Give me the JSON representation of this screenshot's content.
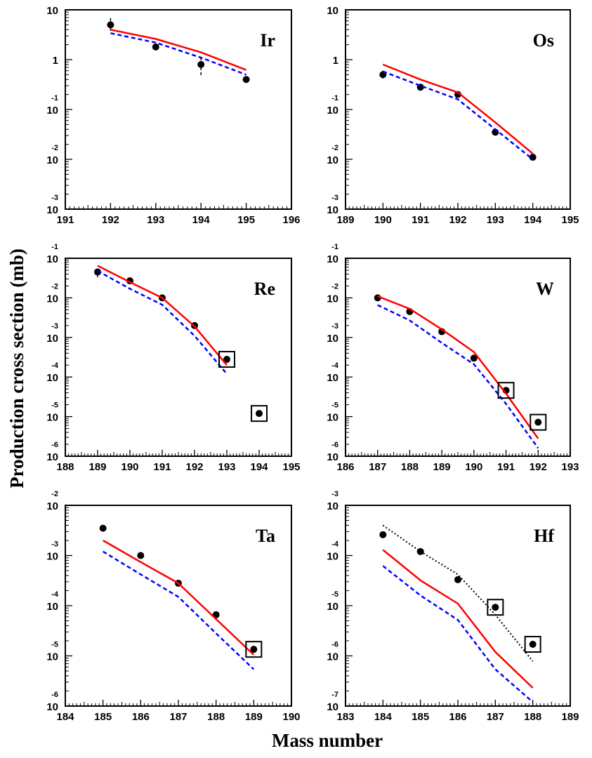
{
  "figure": {
    "xlabel": "Mass number",
    "ylabel": "Production cross section (mb)"
  },
  "chart_data": [
    {
      "type": "scatter",
      "title": "Ir",
      "xlim": [
        191,
        196
      ],
      "xticks": [
        191,
        192,
        193,
        194,
        195,
        196
      ],
      "ylim_exp": [
        -3,
        1
      ],
      "yscale": "log",
      "ytick_labels": [
        {
          "base": "10",
          "exp": ""
        },
        {
          "base": "1",
          "exp": ""
        },
        {
          "base": "10",
          "exp": "-1"
        },
        {
          "base": "10",
          "exp": "-2"
        },
        {
          "base": "10",
          "exp": "-3"
        }
      ],
      "series": [
        {
          "style": "data",
          "color": "#000000",
          "x": [
            192,
            193,
            194,
            195
          ],
          "y": [
            5.0,
            1.8,
            0.8,
            0.4
          ],
          "err_low": [
            3.8,
            1.8,
            0.45,
            0.4
          ],
          "err_high": [
            6.8,
            1.8,
            1.1,
            0.4
          ]
        },
        {
          "style": "solid",
          "color": "#ff0000",
          "x": [
            192,
            193,
            194,
            195
          ],
          "y": [
            4.0,
            2.6,
            1.4,
            0.62
          ]
        },
        {
          "style": "dashed",
          "color": "#0000ff",
          "x": [
            192,
            193,
            194,
            195
          ],
          "y": [
            3.4,
            2.2,
            1.1,
            0.5
          ]
        }
      ],
      "boxed": []
    },
    {
      "type": "scatter",
      "title": "Os",
      "xlim": [
        189,
        195
      ],
      "xticks": [
        189,
        190,
        191,
        192,
        193,
        194,
        195
      ],
      "ylim_exp": [
        -3,
        1
      ],
      "yscale": "log",
      "ytick_labels": [
        {
          "base": "10",
          "exp": ""
        },
        {
          "base": "1",
          "exp": ""
        },
        {
          "base": "10",
          "exp": "-1"
        },
        {
          "base": "10",
          "exp": "-2"
        },
        {
          "base": "10",
          "exp": "-3"
        }
      ],
      "series": [
        {
          "style": "data",
          "color": "#000000",
          "x": [
            190,
            191,
            192,
            193,
            194
          ],
          "y": [
            0.5,
            0.28,
            0.2,
            0.035,
            0.011
          ],
          "err_low": [
            0.4,
            0.28,
            0.2,
            0.035,
            0.011
          ],
          "err_high": [
            0.6,
            0.28,
            0.2,
            0.035,
            0.011
          ]
        },
        {
          "style": "solid",
          "color": "#ff0000",
          "x": [
            190,
            191,
            192,
            193,
            194
          ],
          "y": [
            0.8,
            0.4,
            0.22,
            0.055,
            0.013
          ]
        },
        {
          "style": "dashed",
          "color": "#0000ff",
          "x": [
            190,
            191,
            192,
            193,
            194
          ],
          "y": [
            0.58,
            0.3,
            0.16,
            0.04,
            0.01
          ]
        }
      ],
      "boxed": []
    },
    {
      "type": "scatter",
      "title": "Re",
      "xlim": [
        188,
        195
      ],
      "xticks": [
        188,
        189,
        190,
        191,
        192,
        193,
        194,
        195
      ],
      "ylim_exp": [
        -6,
        -1
      ],
      "yscale": "log",
      "ytick_labels": [
        {
          "base": "10",
          "exp": "-1"
        },
        {
          "base": "10",
          "exp": "-2"
        },
        {
          "base": "10",
          "exp": "-3"
        },
        {
          "base": "10",
          "exp": "-4"
        },
        {
          "base": "10",
          "exp": "-5"
        },
        {
          "base": "10",
          "exp": "-6"
        }
      ],
      "series": [
        {
          "style": "data",
          "color": "#000000",
          "x": [
            189,
            190,
            191,
            192,
            193,
            194
          ],
          "y": [
            0.045,
            0.027,
            0.01,
            0.002,
            0.00028,
            1.2e-05
          ],
          "err_low": [
            0.033,
            0.027,
            0.01,
            0.002,
            0.00028,
            1.2e-05
          ],
          "err_high": [
            0.05,
            0.027,
            0.01,
            0.002,
            0.00028,
            1.2e-05
          ]
        },
        {
          "style": "solid",
          "color": "#ff0000",
          "x": [
            189,
            190,
            191,
            192,
            193
          ],
          "y": [
            0.065,
            0.025,
            0.01,
            0.0019,
            0.0002
          ]
        },
        {
          "style": "dashed",
          "color": "#0000ff",
          "x": [
            189,
            190,
            191,
            192,
            193
          ],
          "y": [
            0.048,
            0.017,
            0.0067,
            0.0011,
            0.00012
          ]
        }
      ],
      "boxed": [
        193,
        194
      ]
    },
    {
      "type": "scatter",
      "title": "W",
      "xlim": [
        186,
        193
      ],
      "xticks": [
        186,
        187,
        188,
        189,
        190,
        191,
        192,
        193
      ],
      "ylim_exp": [
        -6,
        -1
      ],
      "yscale": "log",
      "ytick_labels": [
        {
          "base": "10",
          "exp": "-1"
        },
        {
          "base": "10",
          "exp": "-2"
        },
        {
          "base": "10",
          "exp": "-3"
        },
        {
          "base": "10",
          "exp": "-4"
        },
        {
          "base": "10",
          "exp": "-5"
        },
        {
          "base": "10",
          "exp": "-6"
        }
      ],
      "series": [
        {
          "style": "data",
          "color": "#000000",
          "x": [
            187,
            188,
            189,
            190,
            191,
            192
          ],
          "y": [
            0.01,
            0.0045,
            0.0014,
            0.0003,
            4.6e-05,
            7.2e-06
          ],
          "err_low": [
            0.01,
            0.0045,
            0.0014,
            0.0003,
            4.6e-05,
            7.2e-06
          ],
          "err_high": [
            0.01,
            0.0045,
            0.0014,
            0.0003,
            4.6e-05,
            7.2e-06
          ]
        },
        {
          "style": "solid",
          "color": "#ff0000",
          "x": [
            187,
            188,
            189,
            190,
            191,
            192
          ],
          "y": [
            0.011,
            0.0053,
            0.0016,
            0.00043,
            3.8e-05,
            2.8e-06
          ]
        },
        {
          "style": "dashed",
          "color": "#0000ff",
          "x": [
            187,
            188,
            189,
            190,
            191,
            192
          ],
          "y": [
            0.0066,
            0.0027,
            0.00073,
            0.00021,
            2.1e-05,
            1.6e-06
          ]
        }
      ],
      "boxed": [
        191,
        192
      ]
    },
    {
      "type": "scatter",
      "title": "Ta",
      "xlim": [
        184,
        190
      ],
      "xticks": [
        184,
        185,
        186,
        187,
        188,
        189,
        190
      ],
      "ylim_exp": [
        -6,
        -2
      ],
      "yscale": "log",
      "ytick_labels": [
        {
          "base": "10",
          "exp": "-2"
        },
        {
          "base": "10",
          "exp": "-3"
        },
        {
          "base": "10",
          "exp": "-4"
        },
        {
          "base": "10",
          "exp": "-5"
        },
        {
          "base": "10",
          "exp": "-6"
        }
      ],
      "series": [
        {
          "style": "data",
          "color": "#000000",
          "x": [
            185,
            186,
            187,
            188,
            189
          ],
          "y": [
            0.0035,
            0.001,
            0.00028,
            6.6e-05,
            1.35e-05
          ],
          "err_low": [
            0.0031,
            0.001,
            0.00028,
            6.6e-05,
            1.35e-05
          ],
          "err_high": [
            0.0035,
            0.001,
            0.00028,
            6.6e-05,
            1.35e-05
          ]
        },
        {
          "style": "solid",
          "color": "#ff0000",
          "x": [
            185,
            186,
            187,
            188,
            189
          ],
          "y": [
            0.002,
            0.00074,
            0.00028,
            5.4e-05,
            1.05e-05
          ]
        },
        {
          "style": "dashed",
          "color": "#0000ff",
          "x": [
            185,
            186,
            187,
            188,
            189
          ],
          "y": [
            0.0012,
            0.00042,
            0.00015,
            2.8e-05,
            5.4e-06
          ]
        }
      ],
      "boxed": [
        189
      ]
    },
    {
      "type": "scatter",
      "title": "Hf",
      "xlim": [
        183,
        189
      ],
      "xticks": [
        183,
        184,
        185,
        186,
        187,
        188,
        189
      ],
      "ylim_exp": [
        -7,
        -3
      ],
      "yscale": "log",
      "ytick_labels": [
        {
          "base": "10",
          "exp": "-3"
        },
        {
          "base": "10",
          "exp": "-4"
        },
        {
          "base": "10",
          "exp": "-5"
        },
        {
          "base": "10",
          "exp": "-6"
        },
        {
          "base": "10",
          "exp": "-7"
        }
      ],
      "series": [
        {
          "style": "data",
          "color": "#000000",
          "x": [
            184,
            185,
            186,
            187,
            188
          ],
          "y": [
            0.00026,
            0.00012,
            3.3e-05,
            9.3e-06,
            1.7e-06
          ],
          "err_low": [
            0.00023,
            0.00012,
            3.3e-05,
            9.3e-06,
            1.7e-06
          ],
          "err_high": [
            0.00026,
            0.00012,
            3.3e-05,
            9.3e-06,
            1.7e-06
          ]
        },
        {
          "style": "dotted",
          "color": "#000000",
          "x": [
            184,
            185,
            186,
            187,
            188
          ],
          "y": [
            0.0004,
            0.00012,
            4.2e-05,
            6.6e-06,
            7.8e-07
          ]
        },
        {
          "style": "solid",
          "color": "#ff0000",
          "x": [
            184,
            185,
            186,
            187,
            188
          ],
          "y": [
            0.00013,
            3.2e-05,
            1.1e-05,
            1.2e-06,
            2.3e-07
          ]
        },
        {
          "style": "dashed",
          "color": "#0000ff",
          "x": [
            184,
            185,
            186,
            187,
            188
          ],
          "y": [
            6.2e-05,
            1.6e-05,
            5.2e-06,
            5.4e-07,
            1.2e-07
          ]
        }
      ],
      "boxed": [
        187,
        188
      ]
    }
  ]
}
